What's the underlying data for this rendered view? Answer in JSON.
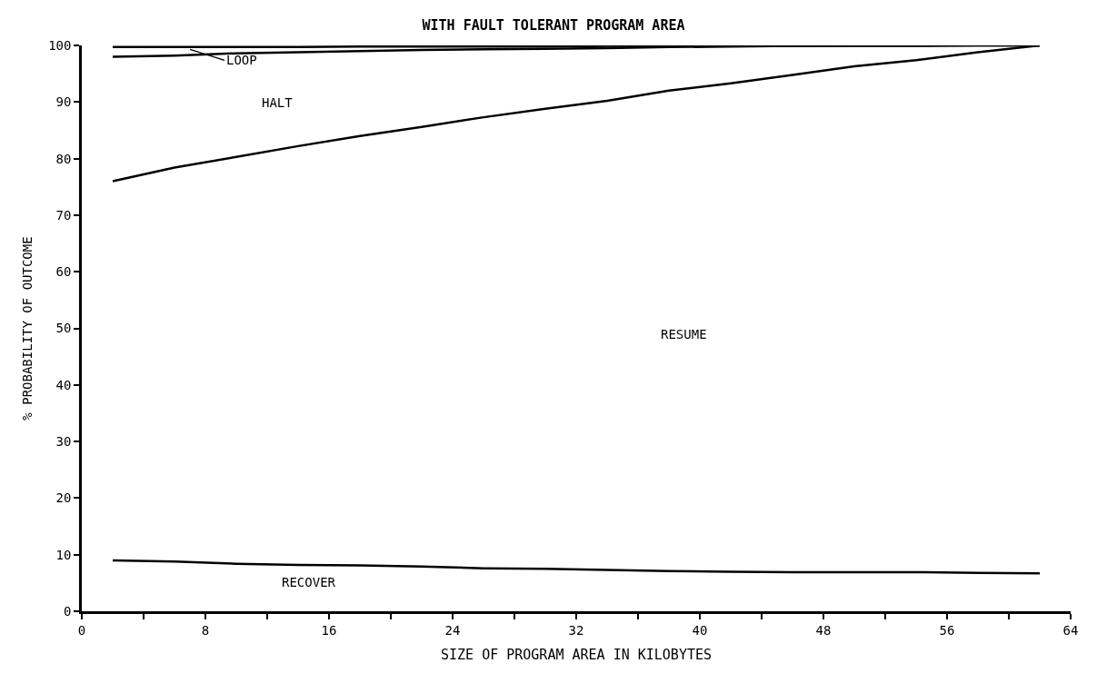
{
  "chart_data": {
    "type": "line",
    "title": "WITH FAULT TOLERANT PROGRAM AREA",
    "xlabel": "SIZE OF PROGRAM AREA IN KILOBYTES",
    "ylabel": "% PROBABILITY OF OUTCOME",
    "x": [
      2,
      6,
      10,
      14,
      18,
      22,
      26,
      30,
      34,
      38,
      42,
      46,
      50,
      54,
      58,
      62
    ],
    "series": [
      {
        "color": "#000000",
        "values": [
          99.7,
          99.7,
          99.7,
          99.7,
          99.8,
          99.8,
          99.8,
          99.8,
          99.9,
          99.9,
          99.9,
          99.9,
          100,
          100,
          100,
          100
        ]
      },
      {
        "color": "#000000",
        "values": [
          98,
          98.2,
          98.6,
          98.8,
          99,
          99.2,
          99.3,
          99.4,
          99.5,
          99.7,
          99.8,
          99.9,
          99.9,
          99.9,
          100,
          100
        ]
      },
      {
        "color": "#000000",
        "values": [
          76,
          78.4,
          80.3,
          82.2,
          84,
          85.6,
          87.3,
          88.8,
          90.2,
          92,
          93.3,
          94.8,
          96.3,
          97.4,
          98.8,
          100
        ]
      },
      {
        "color": "#000000",
        "values": [
          9,
          8.8,
          8.4,
          8.2,
          8.1,
          7.9,
          7.6,
          7.5,
          7.3,
          7.1,
          7.0,
          6.9,
          6.9,
          6.9,
          6.8,
          6.7
        ]
      }
    ],
    "annotations": [
      {
        "text": "LOOP",
        "x": 7,
        "y": 99.3
      },
      "HALT",
      "RESUME",
      "RECOVER"
    ],
    "xlim": [
      0,
      64
    ],
    "ylim": [
      0,
      100
    ],
    "xticks": [
      0,
      {
        "value": 4,
        "label": null
      },
      8,
      {
        "value": 12,
        "label": null
      },
      16,
      {
        "value": 20,
        "label": null
      },
      24,
      {
        "value": 28,
        "label": null
      },
      32,
      {
        "value": 36,
        "label": null
      },
      40,
      {
        "value": 44,
        "label": null
      },
      48,
      {
        "value": 52,
        "label": null
      },
      56,
      {
        "value": 60,
        "label": null
      },
      64
    ],
    "yticks": [
      0,
      10,
      20,
      30,
      40,
      50,
      60,
      70,
      80,
      90,
      100
    ],
    "marker": "none",
    "line_style": "solid"
  }
}
